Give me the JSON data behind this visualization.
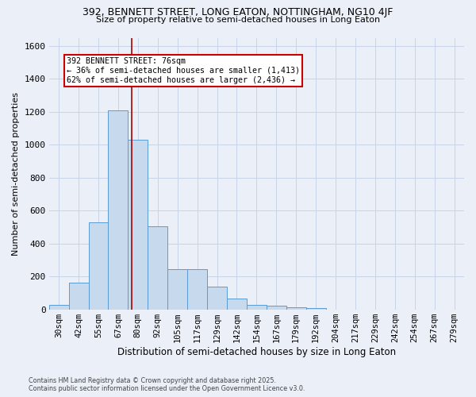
{
  "title_line1": "392, BENNETT STREET, LONG EATON, NOTTINGHAM, NG10 4JF",
  "title_line2": "Size of property relative to semi-detached houses in Long Eaton",
  "xlabel": "Distribution of semi-detached houses by size in Long Eaton",
  "ylabel": "Number of semi-detached properties",
  "bin_labels": [
    "30sqm",
    "42sqm",
    "55sqm",
    "67sqm",
    "80sqm",
    "92sqm",
    "105sqm",
    "117sqm",
    "129sqm",
    "142sqm",
    "154sqm",
    "167sqm",
    "179sqm",
    "192sqm",
    "204sqm",
    "217sqm",
    "229sqm",
    "242sqm",
    "254sqm",
    "267sqm",
    "279sqm"
  ],
  "bin_values": [
    30,
    165,
    530,
    1210,
    1030,
    505,
    245,
    245,
    140,
    65,
    30,
    25,
    15,
    10,
    0,
    0,
    0,
    0,
    0,
    0,
    0
  ],
  "bar_color": "#c7d9ed",
  "bar_edge_color": "#5b9bd5",
  "red_line_x": 3.67,
  "annotation_title": "392 BENNETT STREET: 76sqm",
  "annotation_line1": "← 36% of semi-detached houses are smaller (1,413)",
  "annotation_line2": "62% of semi-detached houses are larger (2,436) →",
  "annotation_box_color": "#ffffff",
  "annotation_box_edge": "#cc0000",
  "red_line_color": "#aa0000",
  "grid_color": "#c8d4e8",
  "background_color": "#eaeff8",
  "ylim": [
    0,
    1650
  ],
  "yticks": [
    0,
    200,
    400,
    600,
    800,
    1000,
    1200,
    1400,
    1600
  ],
  "footer_line1": "Contains HM Land Registry data © Crown copyright and database right 2025.",
  "footer_line2": "Contains public sector information licensed under the Open Government Licence v3.0."
}
